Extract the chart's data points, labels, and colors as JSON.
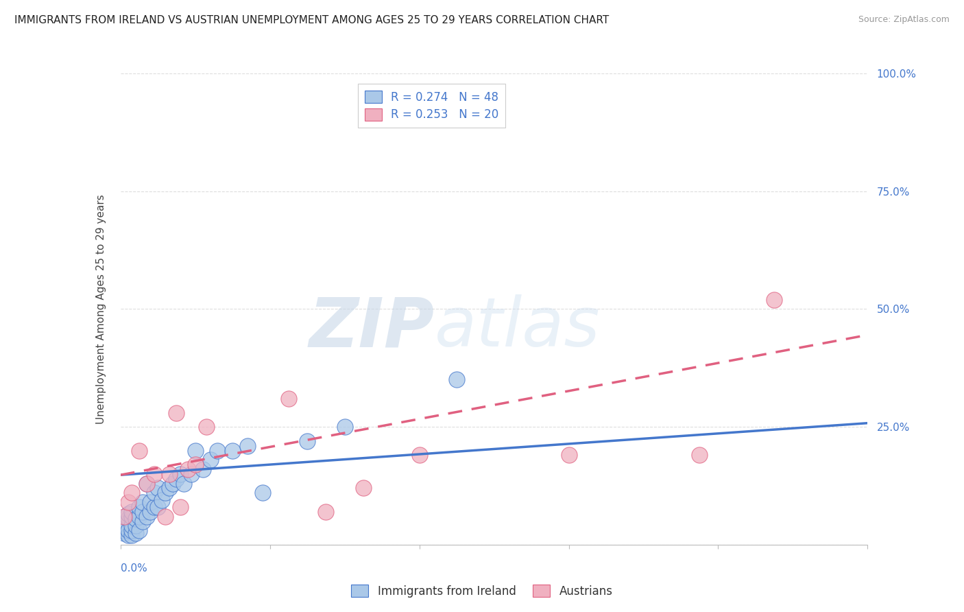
{
  "title": "IMMIGRANTS FROM IRELAND VS AUSTRIAN UNEMPLOYMENT AMONG AGES 25 TO 29 YEARS CORRELATION CHART",
  "source": "Source: ZipAtlas.com",
  "ylabel": "Unemployment Among Ages 25 to 29 years",
  "right_yticklabels": [
    "",
    "25.0%",
    "50.0%",
    "75.0%",
    "100.0%"
  ],
  "blue_R": 0.274,
  "blue_N": 48,
  "pink_R": 0.253,
  "pink_N": 20,
  "blue_color": "#aac8e8",
  "pink_color": "#f0b0c0",
  "blue_line_color": "#4477cc",
  "pink_line_color": "#e06080",
  "legend_label_blue": "Immigrants from Ireland",
  "legend_label_pink": "Austrians",
  "watermark_zip": "ZIP",
  "watermark_atlas": "atlas",
  "blue_scatter_x": [
    0.0005,
    0.001,
    0.001,
    0.001,
    0.002,
    0.002,
    0.002,
    0.002,
    0.003,
    0.003,
    0.003,
    0.003,
    0.003,
    0.004,
    0.004,
    0.004,
    0.005,
    0.005,
    0.005,
    0.006,
    0.006,
    0.006,
    0.007,
    0.007,
    0.008,
    0.008,
    0.009,
    0.009,
    0.01,
    0.01,
    0.011,
    0.012,
    0.013,
    0.014,
    0.015,
    0.016,
    0.017,
    0.019,
    0.02,
    0.022,
    0.024,
    0.026,
    0.03,
    0.034,
    0.038,
    0.05,
    0.06,
    0.09
  ],
  "blue_scatter_y": [
    0.03,
    0.025,
    0.035,
    0.045,
    0.02,
    0.03,
    0.055,
    0.065,
    0.02,
    0.03,
    0.04,
    0.06,
    0.07,
    0.025,
    0.04,
    0.055,
    0.03,
    0.06,
    0.08,
    0.05,
    0.07,
    0.09,
    0.06,
    0.13,
    0.07,
    0.09,
    0.08,
    0.11,
    0.08,
    0.12,
    0.095,
    0.11,
    0.12,
    0.13,
    0.14,
    0.15,
    0.13,
    0.15,
    0.2,
    0.16,
    0.18,
    0.2,
    0.2,
    0.21,
    0.11,
    0.22,
    0.25,
    0.35
  ],
  "pink_scatter_x": [
    0.001,
    0.002,
    0.003,
    0.005,
    0.007,
    0.009,
    0.012,
    0.013,
    0.015,
    0.016,
    0.018,
    0.02,
    0.023,
    0.045,
    0.055,
    0.065,
    0.08,
    0.12,
    0.155,
    0.175
  ],
  "pink_scatter_y": [
    0.06,
    0.09,
    0.11,
    0.2,
    0.13,
    0.15,
    0.06,
    0.15,
    0.28,
    0.08,
    0.16,
    0.17,
    0.25,
    0.31,
    0.07,
    0.12,
    0.19,
    0.19,
    0.19,
    0.52
  ],
  "blue_line_x": [
    0.0,
    0.2
  ],
  "blue_line_y": [
    0.148,
    0.258
  ],
  "pink_line_x": [
    0.0,
    0.2
  ],
  "pink_line_y": [
    0.148,
    0.445
  ],
  "xlim": [
    0.0,
    0.2
  ],
  "ylim": [
    0.0,
    1.0
  ],
  "yticks": [
    0.0,
    0.25,
    0.5,
    0.75,
    1.0
  ],
  "xticks": [
    0.0,
    0.04,
    0.08,
    0.12,
    0.16,
    0.2
  ],
  "background_color": "#ffffff",
  "grid_color": "#dddddd",
  "title_fontsize": 11,
  "source_fontsize": 9,
  "axis_label_fontsize": 11,
  "tick_fontsize": 11,
  "legend_fontsize": 12
}
